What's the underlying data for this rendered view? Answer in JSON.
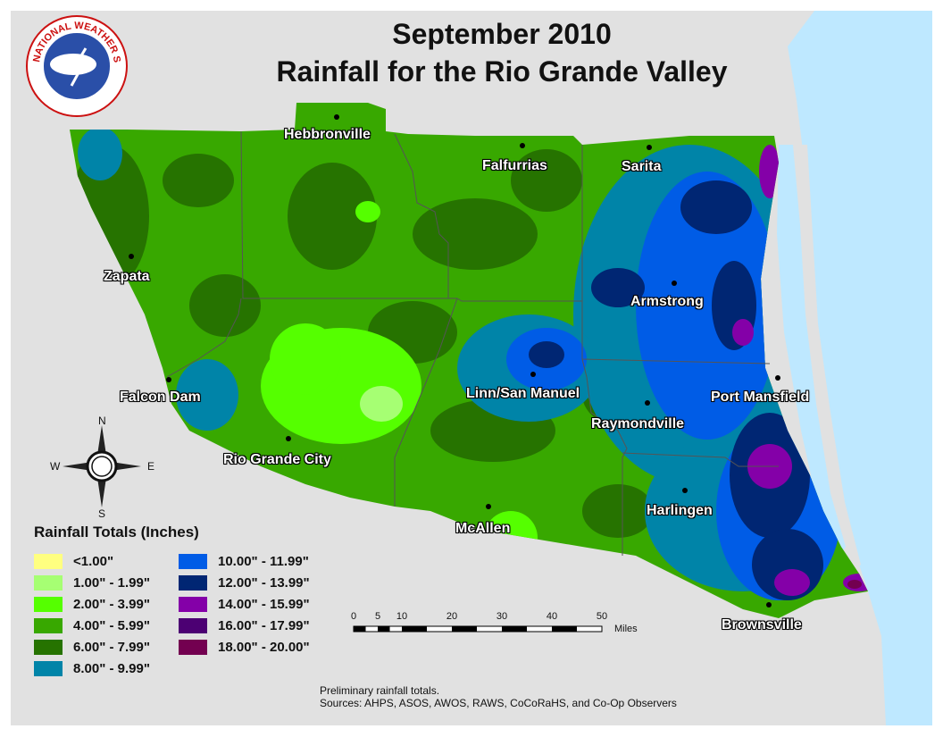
{
  "title": {
    "line1": "September 2010",
    "line2": "Rainfall for the Rio Grande Valley"
  },
  "logo": {
    "text": "NATIONAL WEATHER SERVICE",
    "icon": "nws-logo"
  },
  "cities": [
    {
      "id": "hebbronville",
      "name": "Hebbronville"
    },
    {
      "id": "falfurrias",
      "name": "Falfurrias"
    },
    {
      "id": "sarita",
      "name": "Sarita"
    },
    {
      "id": "zapata",
      "name": "Zapata"
    },
    {
      "id": "armstrong",
      "name": "Armstrong"
    },
    {
      "id": "falcon-dam",
      "name": "Falcon Dam"
    },
    {
      "id": "linn-san-manuel",
      "name": "Linn/San Manuel"
    },
    {
      "id": "port-mansfield",
      "name": "Port Mansfield"
    },
    {
      "id": "raymondville",
      "name": "Raymondville"
    },
    {
      "id": "rio-grande-city",
      "name": "Rio Grande City"
    },
    {
      "id": "harlingen",
      "name": "Harlingen"
    },
    {
      "id": "mcallen",
      "name": "McAllen"
    },
    {
      "id": "brownsville",
      "name": "Brownsville"
    }
  ],
  "compass": {
    "n": "N",
    "s": "S",
    "e": "E",
    "w": "W",
    "icon": "compass-rose-icon"
  },
  "legend": {
    "title": "Rainfall Totals (Inches)",
    "items": [
      {
        "label": "<1.00\"",
        "color": "#ffff80"
      },
      {
        "label": "1.00\" - 1.99\"",
        "color": "#a6ff73"
      },
      {
        "label": "2.00\" - 3.99\"",
        "color": "#55ff00"
      },
      {
        "label": "4.00\" - 5.99\"",
        "color": "#38a800"
      },
      {
        "label": "6.00\" - 7.99\"",
        "color": "#267300"
      },
      {
        "label": "8.00\" - 9.99\"",
        "color": "#0084a8"
      },
      {
        "label": "10.00\" - 11.99\"",
        "color": "#005ce6"
      },
      {
        "label": "12.00\" - 13.99\"",
        "color": "#002673"
      },
      {
        "label": "14.00\" - 15.99\"",
        "color": "#8400a8"
      },
      {
        "label": "16.00\" - 17.99\"",
        "color": "#4c0073"
      },
      {
        "label": "18.00\" - 20.00\"",
        "color": "#730050"
      }
    ]
  },
  "scale_bar": {
    "ticks": [
      "0",
      "5",
      "10",
      "20",
      "30",
      "40",
      "50"
    ],
    "unit": "Miles"
  },
  "notes": {
    "line1": "Preliminary rainfall totals.",
    "line2": "Sources: AHPS, ASOS, AWOS, RAWS, CoCoRaHS, and Co-Op Observers"
  },
  "colors": {
    "background": "#e1e1e1",
    "water": "#bee8ff",
    "county_line": "#555555"
  }
}
